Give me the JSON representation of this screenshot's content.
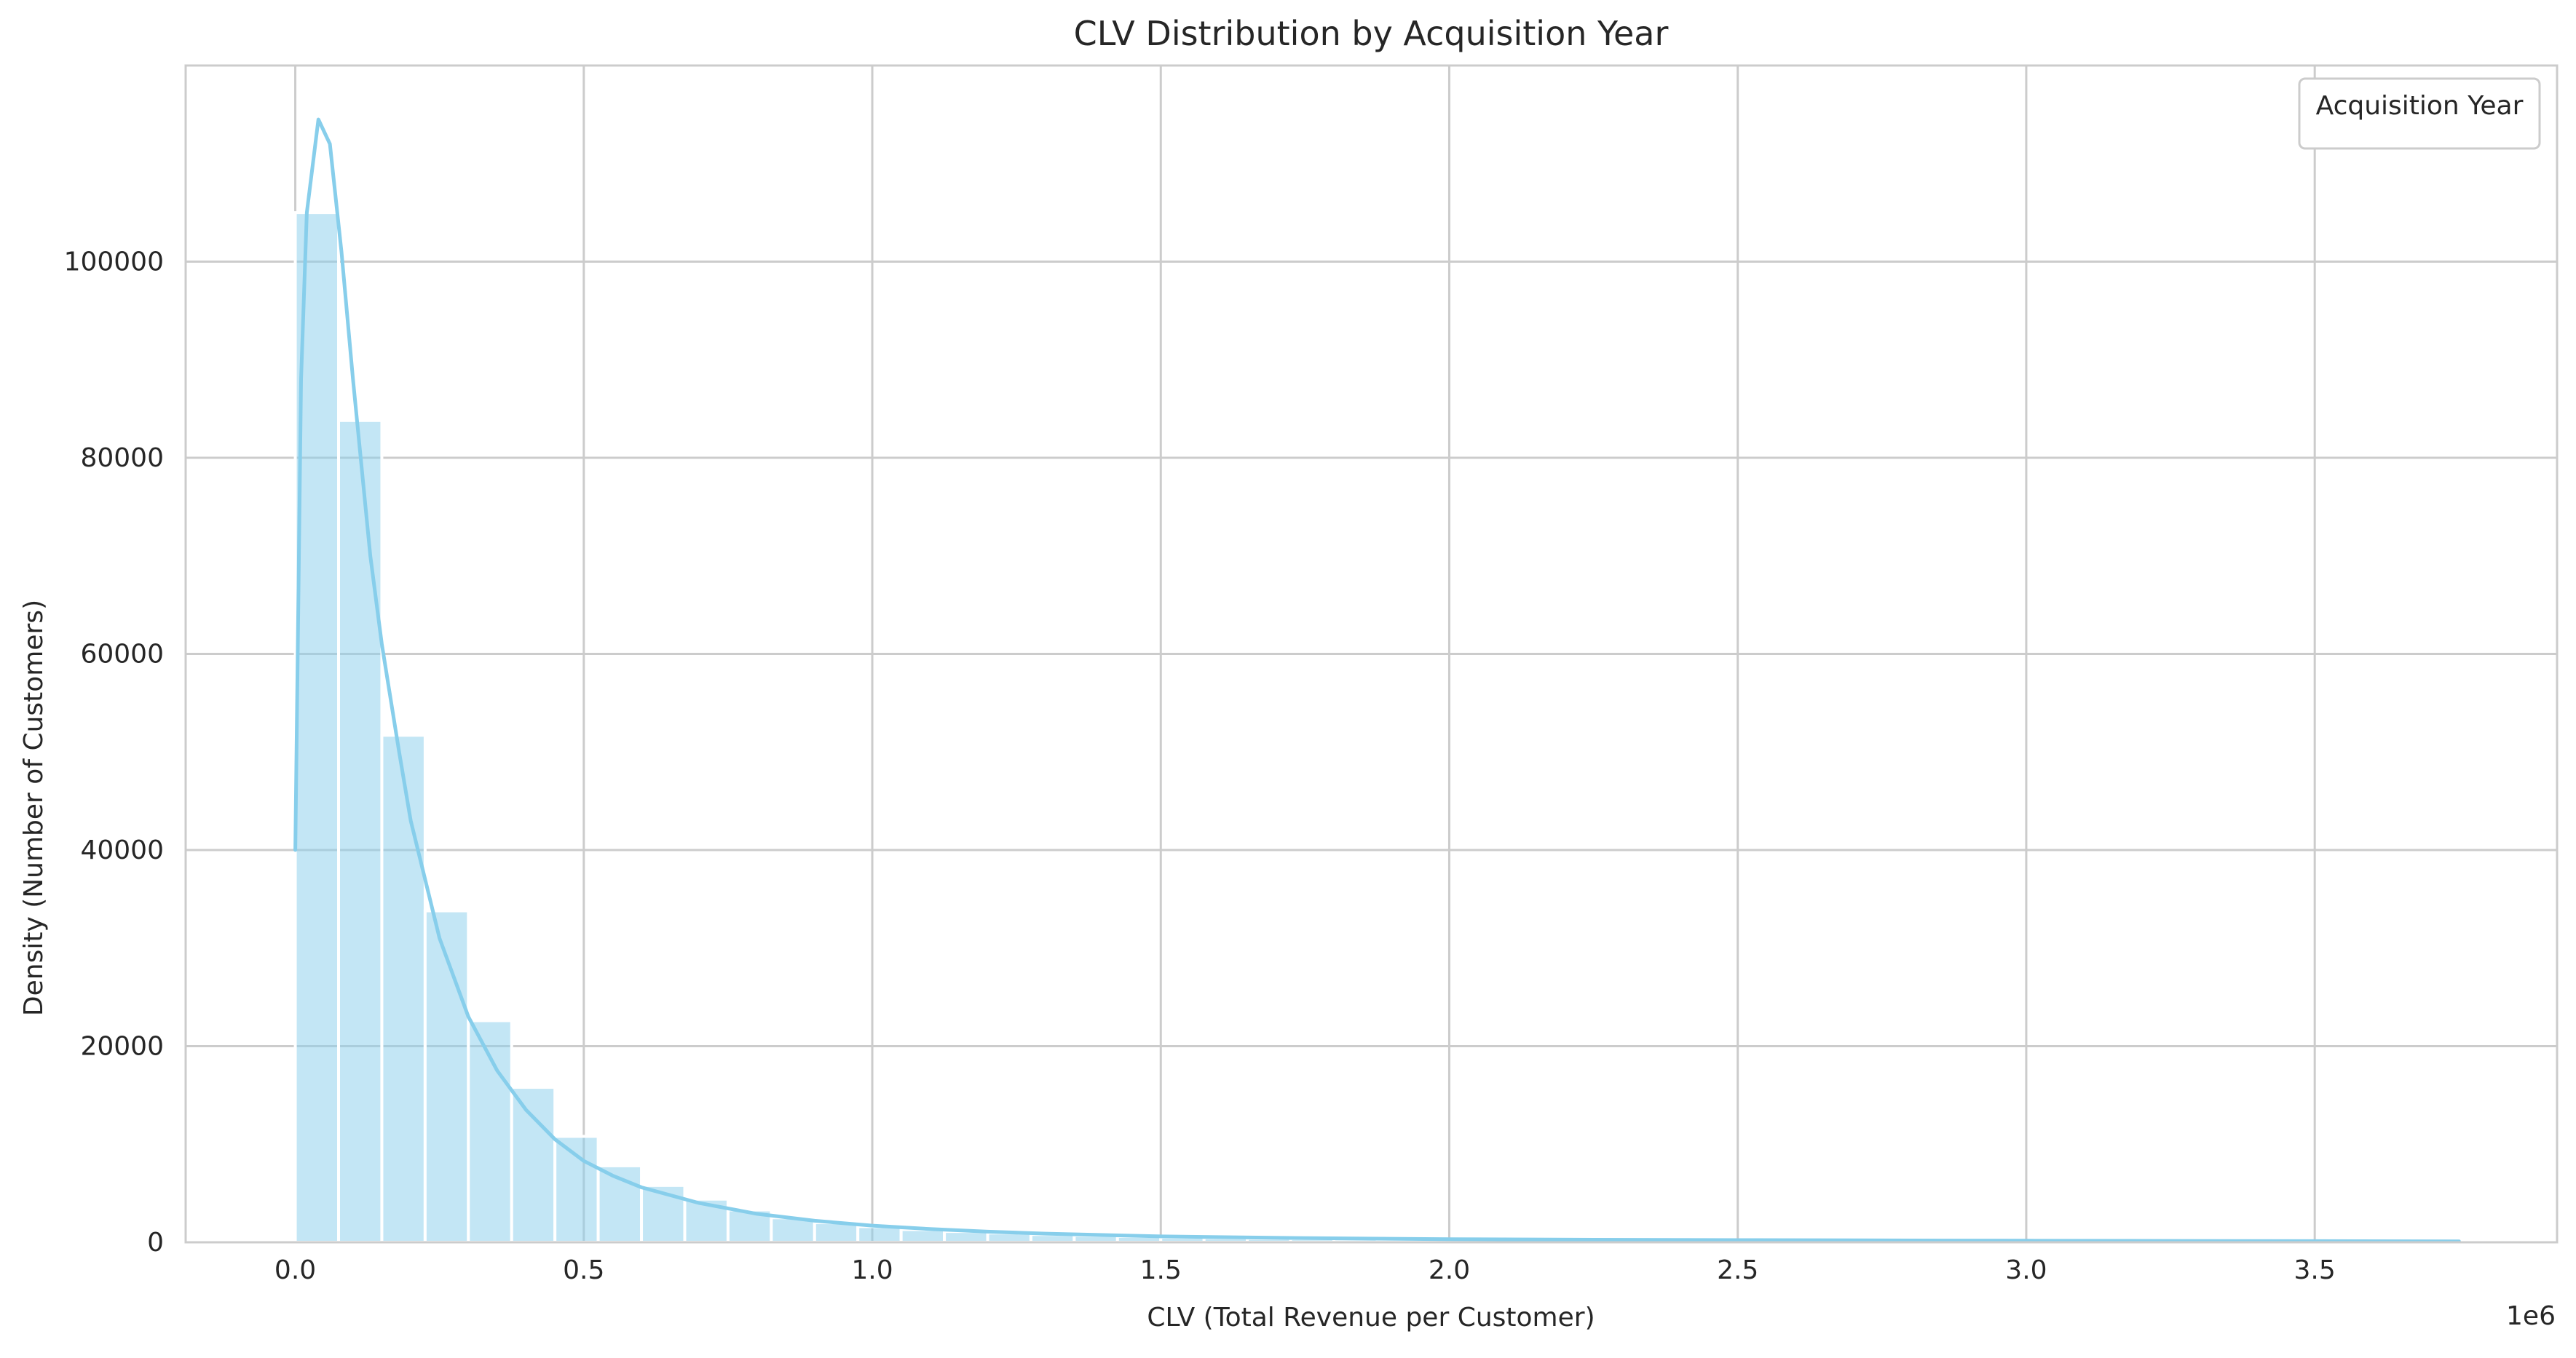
{
  "chart_data": {
    "type": "bar",
    "title": "CLV Distribution by Acquisition Year",
    "xlabel": "CLV (Total Revenue per Customer)",
    "ylabel": "Density (Number of Customers)",
    "x_offset_label": "1e6",
    "legend_title": "Acquisition Year",
    "legend_position": "top-right",
    "grid": true,
    "xlim": [
      -0.19,
      3.92
    ],
    "ylim": [
      0,
      120000
    ],
    "xticks": [
      0.0,
      0.5,
      1.0,
      1.5,
      2.0,
      2.5,
      3.0,
      3.5
    ],
    "xtick_labels": [
      "0.0",
      "0.5",
      "1.0",
      "1.5",
      "2.0",
      "2.5",
      "3.0",
      "3.5"
    ],
    "yticks": [
      0,
      20000,
      40000,
      60000,
      80000,
      100000
    ],
    "ytick_labels": [
      "0",
      "20000",
      "40000",
      "60000",
      "80000",
      "100000"
    ],
    "bar_color": "#87ceeb",
    "bar_start": 0.0,
    "bin_width": 0.075,
    "bins": [
      105000,
      83800,
      51700,
      33800,
      22600,
      15800,
      10800,
      7800,
      5800,
      4400,
      3300,
      2500,
      2000,
      1600,
      1300,
      1100,
      950,
      800,
      700,
      600,
      520,
      460,
      400,
      360,
      320,
      290,
      260,
      240,
      220,
      200,
      185,
      170,
      160,
      150,
      140,
      130,
      120,
      115,
      110,
      105,
      100,
      95,
      90,
      85,
      80,
      75,
      70,
      65,
      60,
      55
    ],
    "kde_color": "#87ceeb",
    "kde": {
      "x": [
        0.0,
        0.01,
        0.02,
        0.04,
        0.06,
        0.08,
        0.1,
        0.13,
        0.15,
        0.18,
        0.2,
        0.25,
        0.3,
        0.35,
        0.4,
        0.45,
        0.5,
        0.55,
        0.6,
        0.7,
        0.8,
        0.9,
        1.0,
        1.1,
        1.2,
        1.3,
        1.5,
        1.75,
        2.0,
        2.25,
        2.5,
        2.75,
        3.0,
        3.25,
        3.5,
        3.75
      ],
      "y": [
        40000,
        88000,
        105000,
        114500,
        112000,
        101000,
        88000,
        70000,
        61000,
        50000,
        43000,
        31000,
        23000,
        17500,
        13500,
        10500,
        8300,
        6800,
        5600,
        4000,
        2900,
        2200,
        1700,
        1350,
        1080,
        880,
        600,
        420,
        320,
        260,
        220,
        190,
        165,
        140,
        120,
        100
      ]
    }
  }
}
